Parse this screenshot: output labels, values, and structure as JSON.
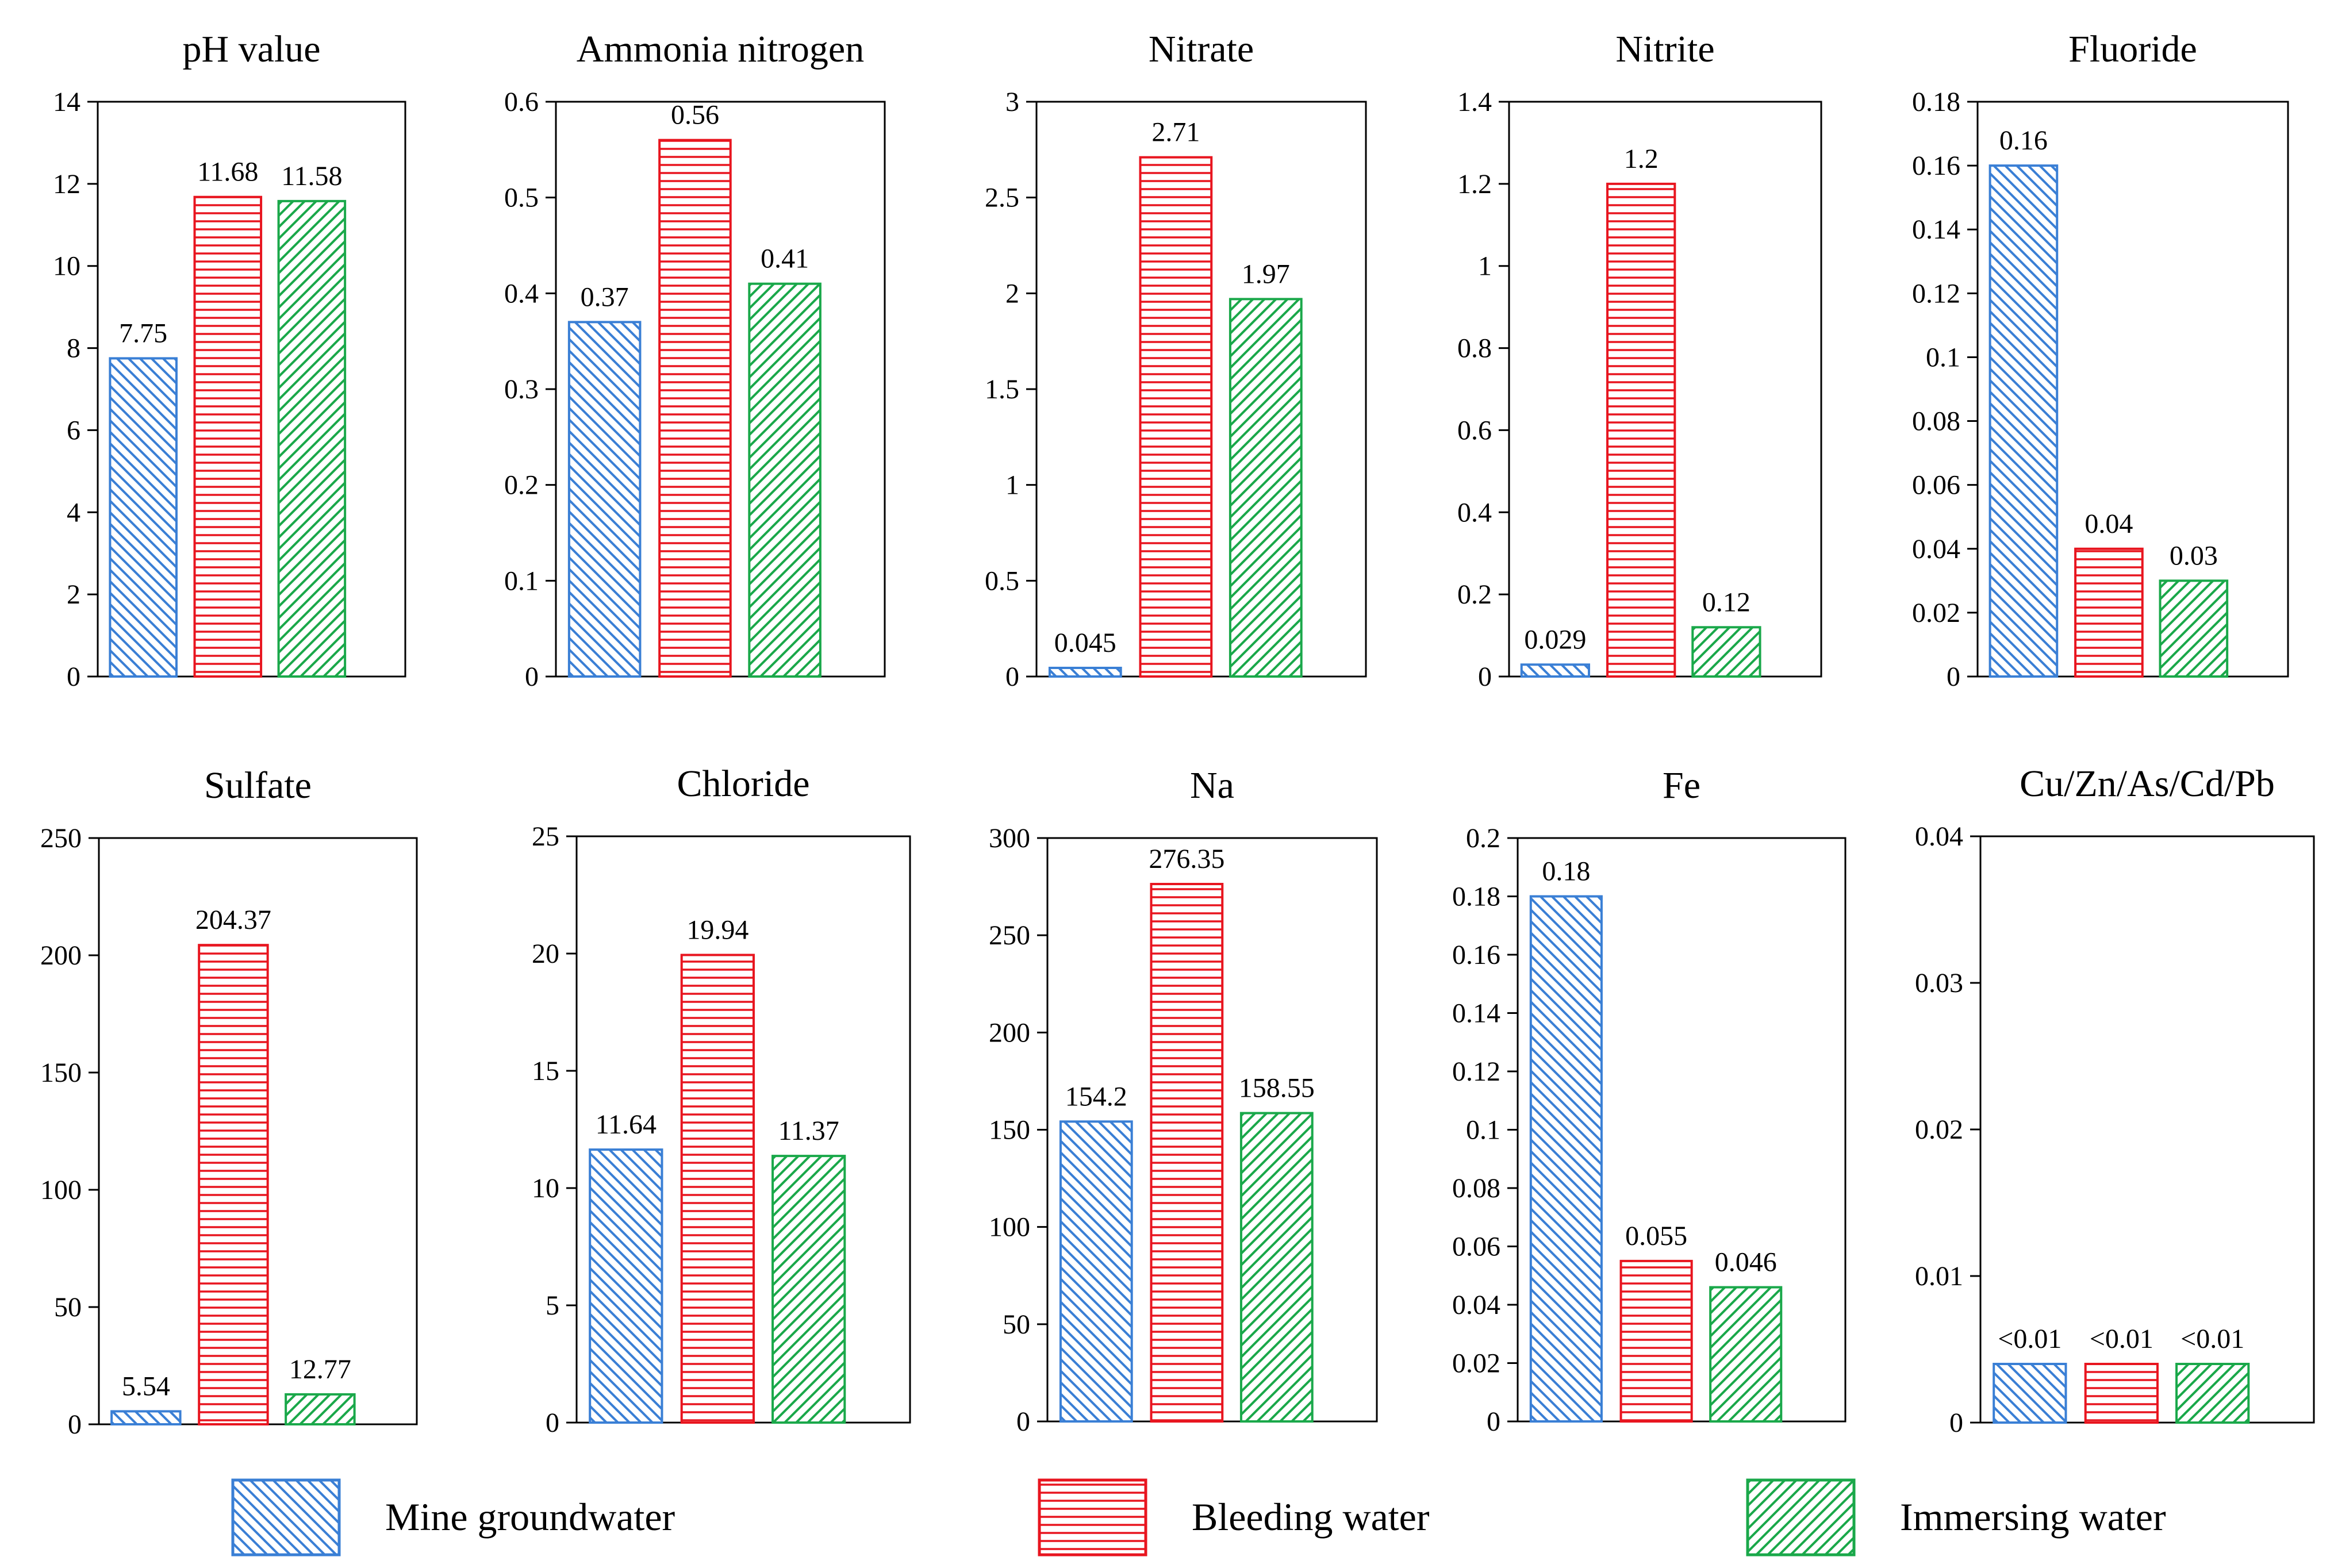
{
  "chart_data": [
    {
      "type": "bar",
      "title": "pH value",
      "categories": [
        "Mine groundwater",
        "Bleeding water",
        "Immersing water"
      ],
      "values": [
        7.75,
        11.68,
        11.58
      ],
      "labels": [
        "7.75",
        "11.68",
        "11.58"
      ],
      "ylim": [
        0,
        14
      ],
      "yticks": [
        "0",
        "2",
        "4",
        "6",
        "8",
        "10",
        "12",
        "14"
      ],
      "grid": false
    },
    {
      "type": "bar",
      "title": "Ammonia nitrogen",
      "categories": [
        "Mine groundwater",
        "Bleeding water",
        "Immersing water"
      ],
      "values": [
        0.37,
        0.56,
        0.41
      ],
      "labels": [
        "0.37",
        "0.56",
        "0.41"
      ],
      "ylim": [
        0,
        0.6
      ],
      "yticks": [
        "0",
        "0.1",
        "0.2",
        "0.3",
        "0.4",
        "0.5",
        "0.6"
      ],
      "grid": false
    },
    {
      "type": "bar",
      "title": "Nitrate",
      "categories": [
        "Mine groundwater",
        "Bleeding water",
        "Immersing water"
      ],
      "values": [
        0.045,
        2.71,
        1.97
      ],
      "labels": [
        "0.045",
        "2.71",
        "1.97"
      ],
      "ylim": [
        0,
        3
      ],
      "yticks": [
        "0",
        "0.5",
        "1",
        "1.5",
        "2",
        "2.5",
        "3"
      ],
      "grid": false
    },
    {
      "type": "bar",
      "title": "Nitrite",
      "categories": [
        "Mine groundwater",
        "Bleeding water",
        "Immersing water"
      ],
      "values": [
        0.029,
        1.2,
        0.12
      ],
      "labels": [
        "0.029",
        "1.2",
        "0.12"
      ],
      "ylim": [
        0,
        1.4
      ],
      "yticks": [
        "0",
        "0.2",
        "0.4",
        "0.6",
        "0.8",
        "1",
        "1.2",
        "1.4"
      ],
      "grid": false
    },
    {
      "type": "bar",
      "title": "Fluoride",
      "categories": [
        "Mine groundwater",
        "Bleeding water",
        "Immersing water"
      ],
      "values": [
        0.16,
        0.04,
        0.03
      ],
      "labels": [
        "0.16",
        "0.04",
        "0.03"
      ],
      "ylim": [
        0,
        0.18
      ],
      "yticks": [
        "0",
        "0.02",
        "0.04",
        "0.06",
        "0.08",
        "0.1",
        "0.12",
        "0.14",
        "0.16",
        "0.18"
      ],
      "grid": false
    },
    {
      "type": "bar",
      "title": "Sulfate",
      "categories": [
        "Mine groundwater",
        "Bleeding water",
        "Immersing water"
      ],
      "values": [
        5.54,
        204.37,
        12.77
      ],
      "labels": [
        "5.54",
        "204.37",
        "12.77"
      ],
      "ylim": [
        0,
        250
      ],
      "yticks": [
        "0",
        "50",
        "100",
        "150",
        "200",
        "250"
      ],
      "grid": false
    },
    {
      "type": "bar",
      "title": "Chloride",
      "categories": [
        "Mine groundwater",
        "Bleeding water",
        "Immersing water"
      ],
      "values": [
        11.64,
        19.94,
        11.37
      ],
      "labels": [
        "11.64",
        "19.94",
        "11.37"
      ],
      "ylim": [
        0,
        25
      ],
      "yticks": [
        "0",
        "5",
        "10",
        "15",
        "20",
        "25"
      ],
      "grid": false
    },
    {
      "type": "bar",
      "title": "Na",
      "categories": [
        "Mine groundwater",
        "Bleeding water",
        "Immersing water"
      ],
      "values": [
        154.2,
        276.35,
        158.55
      ],
      "labels": [
        "154.2",
        "276.35",
        "158.55"
      ],
      "ylim": [
        0,
        300
      ],
      "yticks": [
        "0",
        "50",
        "100",
        "150",
        "200",
        "250",
        "300"
      ],
      "grid": false
    },
    {
      "type": "bar",
      "title": "Fe",
      "categories": [
        "Mine groundwater",
        "Bleeding water",
        "Immersing water"
      ],
      "values": [
        0.18,
        0.055,
        0.046
      ],
      "labels": [
        "0.18",
        "0.055",
        "0.046"
      ],
      "ylim": [
        0,
        0.2
      ],
      "yticks": [
        "0",
        "0.02",
        "0.04",
        "0.06",
        "0.08",
        "0.1",
        "0.12",
        "0.14",
        "0.16",
        "0.18",
        "0.2"
      ],
      "grid": false
    },
    {
      "type": "bar",
      "title": "Cu/Zn/As/Cd/Pb",
      "categories": [
        "Mine groundwater",
        "Bleeding water",
        "Immersing water"
      ],
      "values": [
        0.004,
        0.004,
        0.004
      ],
      "labels": [
        "<0.01",
        "<0.01",
        "<0.01"
      ],
      "ylim": [
        0,
        0.04
      ],
      "yticks": [
        "0",
        "0.01",
        "0.02",
        "0.03",
        "0.04"
      ],
      "grid": false
    }
  ],
  "legend": {
    "placement": "bottom",
    "items": [
      {
        "name": "Mine groundwater",
        "color": "#3a7fd5",
        "pattern": "diagonal-backslash"
      },
      {
        "name": "Bleeding water",
        "color": "#e8151f",
        "pattern": "horizontal"
      },
      {
        "name": "Immersing water",
        "color": "#1aa84a",
        "pattern": "diagonal-slash"
      }
    ]
  }
}
